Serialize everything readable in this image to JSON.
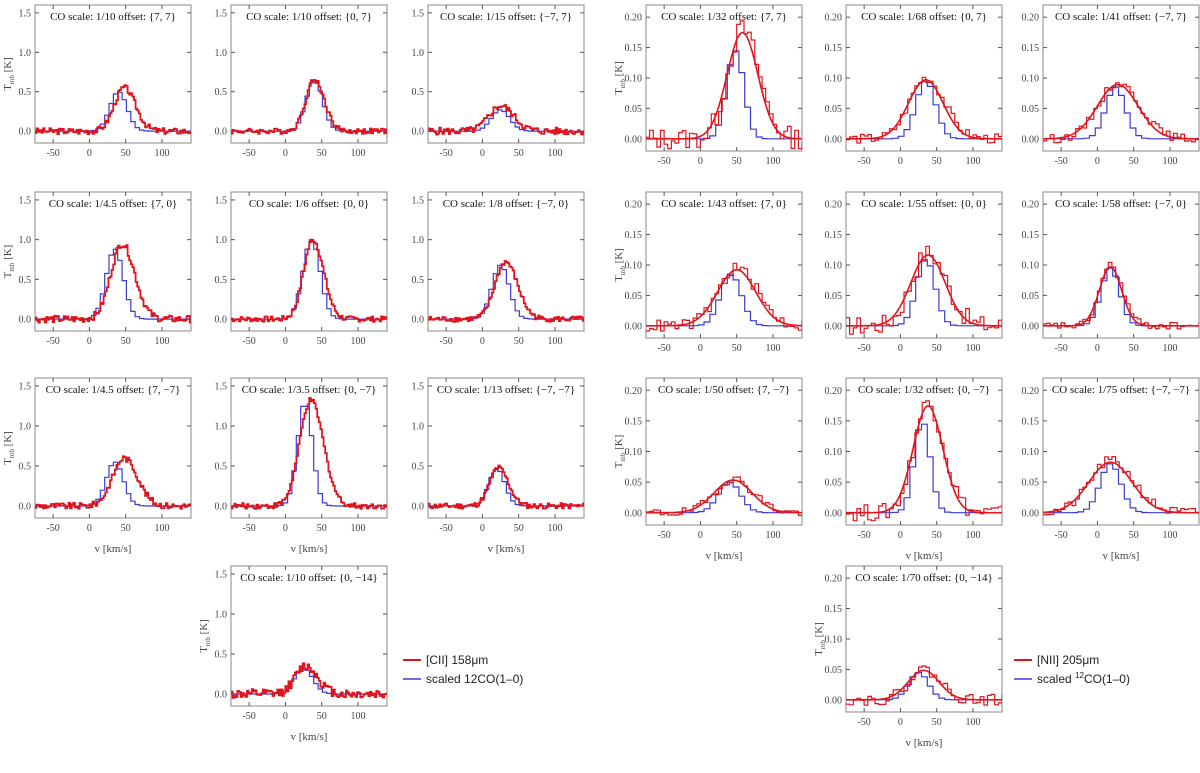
{
  "panel_scale_label": "CO scale: ",
  "panel_offset_label": "offset: ",
  "xlabel": "v [km/s]",
  "ylabel_main": "T",
  "ylabel_sub": "mb",
  "ylabel_unit": " [K]",
  "colors": {
    "data": "#e0141c",
    "co": "#3b3bd6",
    "fit": "#e0141c",
    "frame": "#888888",
    "tick": "#555555"
  },
  "legends": [
    {
      "group": "cii",
      "line_label": "[CII] 158μm",
      "co_label": "scaled 12CO(1–0)"
    },
    {
      "group": "nii",
      "line_label": "[NII] 205μm",
      "co_label_pre": "scaled ",
      "co_label_sup": "12",
      "co_label_post": "CO(1–0)"
    }
  ],
  "chart_data": [
    {
      "type": "line",
      "group": "cii",
      "scale": "1/10",
      "offset": "{7, 7}",
      "xlim": [
        -75,
        140
      ],
      "ylim": [
        -0.15,
        1.6
      ],
      "yticks": [
        0,
        0.5,
        1,
        1.5
      ],
      "yfmt": 1,
      "xticks": [
        -50,
        0,
        50,
        100
      ],
      "peak_data": 0.55,
      "center_data": 48,
      "width_data": 34,
      "peak_co": 0.5,
      "center_co": 40,
      "width_co": 28,
      "noise": 0.04,
      "fit": false,
      "show_ylabel": true,
      "show_xlabel": false
    },
    {
      "type": "line",
      "group": "cii",
      "scale": "1/10",
      "offset": "{0, 7}",
      "xlim": [
        -75,
        140
      ],
      "ylim": [
        -0.15,
        1.6
      ],
      "yticks": [
        0,
        0.5,
        1,
        1.5
      ],
      "yfmt": 1,
      "xticks": [
        -50,
        0,
        50,
        100
      ],
      "peak_data": 0.65,
      "center_data": 40,
      "width_data": 30,
      "peak_co": 0.65,
      "center_co": 40,
      "width_co": 27,
      "noise": 0.035,
      "fit": false,
      "show_ylabel": false,
      "show_xlabel": false
    },
    {
      "type": "line",
      "group": "cii",
      "scale": "1/15",
      "offset": "{−7, 7}",
      "xlim": [
        -75,
        140
      ],
      "ylim": [
        -0.15,
        1.6
      ],
      "yticks": [
        0,
        0.5,
        1,
        1.5
      ],
      "yfmt": 1,
      "xticks": [
        -50,
        0,
        50,
        100
      ],
      "peak_data": 0.32,
      "center_data": 25,
      "width_data": 40,
      "peak_co": 0.27,
      "center_co": 25,
      "width_co": 30,
      "noise": 0.045,
      "fit": false,
      "show_ylabel": false,
      "show_xlabel": false
    },
    {
      "type": "line",
      "group": "cii",
      "scale": "1/4.5",
      "offset": "{7, 0}",
      "xlim": [
        -75,
        140
      ],
      "ylim": [
        -0.15,
        1.6
      ],
      "yticks": [
        0,
        0.5,
        1,
        1.5
      ],
      "yfmt": 1,
      "xticks": [
        -50,
        0,
        50,
        100
      ],
      "peak_data": 0.95,
      "center_data": 45,
      "width_data": 38,
      "peak_co": 0.88,
      "center_co": 35,
      "width_co": 28,
      "noise": 0.045,
      "fit": false,
      "show_ylabel": true,
      "show_xlabel": false
    },
    {
      "type": "line",
      "group": "cii",
      "scale": "1/6",
      "offset": "{0, 0}",
      "xlim": [
        -75,
        140
      ],
      "ylim": [
        -0.15,
        1.6
      ],
      "yticks": [
        0,
        0.5,
        1,
        1.5
      ],
      "yfmt": 1,
      "xticks": [
        -50,
        0,
        50,
        100
      ],
      "peak_data": 1.0,
      "center_data": 38,
      "width_data": 32,
      "peak_co": 1.0,
      "center_co": 36,
      "width_co": 28,
      "noise": 0.035,
      "fit": false,
      "show_ylabel": false,
      "show_xlabel": false
    },
    {
      "type": "line",
      "group": "cii",
      "scale": "1/8",
      "offset": "{−7, 0}",
      "xlim": [
        -75,
        140
      ],
      "ylim": [
        -0.15,
        1.6
      ],
      "yticks": [
        0,
        0.5,
        1,
        1.5
      ],
      "yfmt": 1,
      "xticks": [
        -50,
        0,
        50,
        100
      ],
      "peak_data": 0.72,
      "center_data": 32,
      "width_data": 36,
      "peak_co": 0.68,
      "center_co": 25,
      "width_co": 28,
      "noise": 0.035,
      "fit": false,
      "show_ylabel": false,
      "show_xlabel": false
    },
    {
      "type": "line",
      "group": "cii",
      "scale": "1/4.5",
      "offset": "{7, −7}",
      "xlim": [
        -75,
        140
      ],
      "ylim": [
        -0.15,
        1.6
      ],
      "yticks": [
        0,
        0.5,
        1,
        1.5
      ],
      "yfmt": 1,
      "xticks": [
        -50,
        0,
        50,
        100
      ],
      "peak_data": 0.6,
      "center_data": 48,
      "width_data": 40,
      "peak_co": 0.55,
      "center_co": 35,
      "width_co": 28,
      "noise": 0.04,
      "fit": false,
      "show_ylabel": true,
      "show_xlabel": true
    },
    {
      "type": "line",
      "group": "cii",
      "scale": "1/3.5",
      "offset": "{0, −7}",
      "xlim": [
        -75,
        140
      ],
      "ylim": [
        -0.15,
        1.6
      ],
      "yticks": [
        0,
        0.5,
        1,
        1.5
      ],
      "yfmt": 1,
      "xticks": [
        -50,
        0,
        50,
        100
      ],
      "peak_data": 1.32,
      "center_data": 35,
      "width_data": 38,
      "peak_co": 1.3,
      "center_co": 27,
      "width_co": 24,
      "noise": 0.035,
      "fit": false,
      "show_ylabel": false,
      "show_xlabel": true
    },
    {
      "type": "line",
      "group": "cii",
      "scale": "1/13",
      "offset": "{−7, −7}",
      "xlim": [
        -75,
        140
      ],
      "ylim": [
        -0.15,
        1.6
      ],
      "yticks": [
        0,
        0.5,
        1,
        1.5
      ],
      "yfmt": 1,
      "xticks": [
        -50,
        0,
        50,
        100
      ],
      "peak_data": 0.48,
      "center_data": 22,
      "width_data": 30,
      "peak_co": 0.46,
      "center_co": 20,
      "width_co": 26,
      "noise": 0.035,
      "fit": false,
      "show_ylabel": false,
      "show_xlabel": true
    },
    {
      "type": "line",
      "group": "cii",
      "scale": "1/10",
      "offset": "{0, −14}",
      "xlim": [
        -75,
        140
      ],
      "ylim": [
        -0.15,
        1.6
      ],
      "yticks": [
        0,
        0.5,
        1,
        1.5
      ],
      "yfmt": 1,
      "xticks": [
        -50,
        0,
        50,
        100
      ],
      "peak_data": 0.35,
      "center_data": 28,
      "width_data": 36,
      "peak_co": 0.32,
      "center_co": 25,
      "width_co": 30,
      "noise": 0.06,
      "fit": false,
      "show_ylabel": true,
      "show_xlabel": true
    },
    {
      "type": "line",
      "group": "nii",
      "scale": "1/32",
      "offset": "{7, 7}",
      "xlim": [
        -75,
        140
      ],
      "ylim": [
        -0.02,
        0.22
      ],
      "yticks": [
        0,
        0.05,
        0.1,
        0.15,
        0.2
      ],
      "yfmt": 2,
      "xticks": [
        -50,
        0,
        50,
        100
      ],
      "peak_data": 0.18,
      "center_data": 58,
      "width_data": 50,
      "peak_co": 0.145,
      "center_co": 48,
      "width_co": 28,
      "noise": 0.018,
      "fit": true,
      "show_ylabel": true,
      "show_xlabel": false
    },
    {
      "type": "line",
      "group": "nii",
      "scale": "1/68",
      "offset": "{0, 7}",
      "xlim": [
        -75,
        140
      ],
      "ylim": [
        -0.02,
        0.22
      ],
      "yticks": [
        0,
        0.05,
        0.1,
        0.15,
        0.2
      ],
      "yfmt": 2,
      "xticks": [
        -50,
        0,
        50,
        100
      ],
      "peak_data": 0.1,
      "center_data": 35,
      "width_data": 56,
      "peak_co": 0.095,
      "center_co": 35,
      "width_co": 32,
      "noise": 0.008,
      "fit": true,
      "show_ylabel": false,
      "show_xlabel": false
    },
    {
      "type": "line",
      "group": "nii",
      "scale": "1/41",
      "offset": "{−7, 7}",
      "xlim": [
        -75,
        140
      ],
      "ylim": [
        -0.02,
        0.22
      ],
      "yticks": [
        0,
        0.05,
        0.1,
        0.15,
        0.2
      ],
      "yfmt": 2,
      "xticks": [
        -50,
        0,
        50,
        100
      ],
      "peak_data": 0.092,
      "center_data": 28,
      "width_data": 66,
      "peak_co": 0.085,
      "center_co": 25,
      "width_co": 32,
      "noise": 0.007,
      "fit": true,
      "show_ylabel": false,
      "show_xlabel": false
    },
    {
      "type": "line",
      "group": "nii",
      "scale": "1/43",
      "offset": "{7, 0}",
      "xlim": [
        -75,
        140
      ],
      "ylim": [
        -0.02,
        0.22
      ],
      "yticks": [
        0,
        0.05,
        0.1,
        0.15,
        0.2
      ],
      "yfmt": 2,
      "xticks": [
        -50,
        0,
        50,
        100
      ],
      "peak_data": 0.095,
      "center_data": 50,
      "width_data": 62,
      "peak_co": 0.085,
      "center_co": 42,
      "width_co": 34,
      "noise": 0.01,
      "fit": true,
      "show_ylabel": true,
      "show_xlabel": false
    },
    {
      "type": "line",
      "group": "nii",
      "scale": "1/55",
      "offset": "{0, 0}",
      "xlim": [
        -75,
        140
      ],
      "ylim": [
        -0.02,
        0.22
      ],
      "yticks": [
        0,
        0.05,
        0.1,
        0.15,
        0.2
      ],
      "yfmt": 2,
      "xticks": [
        -50,
        0,
        50,
        100
      ],
      "peak_data": 0.12,
      "center_data": 38,
      "width_data": 56,
      "peak_co": 0.11,
      "center_co": 35,
      "width_co": 30,
      "noise": 0.016,
      "fit": true,
      "show_ylabel": false,
      "show_xlabel": false
    },
    {
      "type": "line",
      "group": "nii",
      "scale": "1/58",
      "offset": "{−7, 0}",
      "xlim": [
        -75,
        140
      ],
      "ylim": [
        -0.02,
        0.22
      ],
      "yticks": [
        0,
        0.05,
        0.1,
        0.15,
        0.2
      ],
      "yfmt": 2,
      "xticks": [
        -50,
        0,
        50,
        100
      ],
      "peak_data": 0.1,
      "center_data": 18,
      "width_data": 36,
      "peak_co": 0.095,
      "center_co": 18,
      "width_co": 30,
      "noise": 0.006,
      "fit": true,
      "show_ylabel": false,
      "show_xlabel": false
    },
    {
      "type": "line",
      "group": "nii",
      "scale": "1/50",
      "offset": "{7, −7}",
      "xlim": [
        -75,
        140
      ],
      "ylim": [
        -0.02,
        0.22
      ],
      "yticks": [
        0,
        0.05,
        0.1,
        0.15,
        0.2
      ],
      "yfmt": 2,
      "xticks": [
        -50,
        0,
        50,
        100
      ],
      "peak_data": 0.055,
      "center_data": 45,
      "width_data": 62,
      "peak_co": 0.05,
      "center_co": 40,
      "width_co": 36,
      "noise": 0.007,
      "fit": true,
      "show_ylabel": true,
      "show_xlabel": true
    },
    {
      "type": "line",
      "group": "nii",
      "scale": "1/32",
      "offset": "{0, −7}",
      "xlim": [
        -75,
        140
      ],
      "ylim": [
        -0.02,
        0.22
      ],
      "yticks": [
        0,
        0.05,
        0.1,
        0.15,
        0.2
      ],
      "yfmt": 2,
      "xticks": [
        -50,
        0,
        50,
        100
      ],
      "peak_data": 0.18,
      "center_data": 38,
      "width_data": 48,
      "peak_co": 0.15,
      "center_co": 30,
      "width_co": 26,
      "noise": 0.014,
      "fit": true,
      "show_ylabel": false,
      "show_xlabel": true
    },
    {
      "type": "line",
      "group": "nii",
      "scale": "1/75",
      "offset": "{−7, −7}",
      "xlim": [
        -75,
        140
      ],
      "ylim": [
        -0.02,
        0.22
      ],
      "yticks": [
        0,
        0.05,
        0.1,
        0.15,
        0.2
      ],
      "yfmt": 2,
      "xticks": [
        -50,
        0,
        50,
        100
      ],
      "peak_data": 0.085,
      "center_data": 18,
      "width_data": 70,
      "peak_co": 0.08,
      "center_co": 18,
      "width_co": 34,
      "noise": 0.008,
      "fit": true,
      "show_ylabel": false,
      "show_xlabel": true
    },
    {
      "type": "line",
      "group": "nii",
      "scale": "1/70",
      "offset": "{0, −14}",
      "xlim": [
        -75,
        140
      ],
      "ylim": [
        -0.02,
        0.22
      ],
      "yticks": [
        0,
        0.05,
        0.1,
        0.15,
        0.2
      ],
      "yfmt": 2,
      "xticks": [
        -50,
        0,
        50,
        100
      ],
      "peak_data": 0.05,
      "center_data": 32,
      "width_data": 50,
      "peak_co": 0.045,
      "center_co": 25,
      "width_co": 32,
      "noise": 0.009,
      "fit": true,
      "show_ylabel": true,
      "show_xlabel": true
    }
  ]
}
